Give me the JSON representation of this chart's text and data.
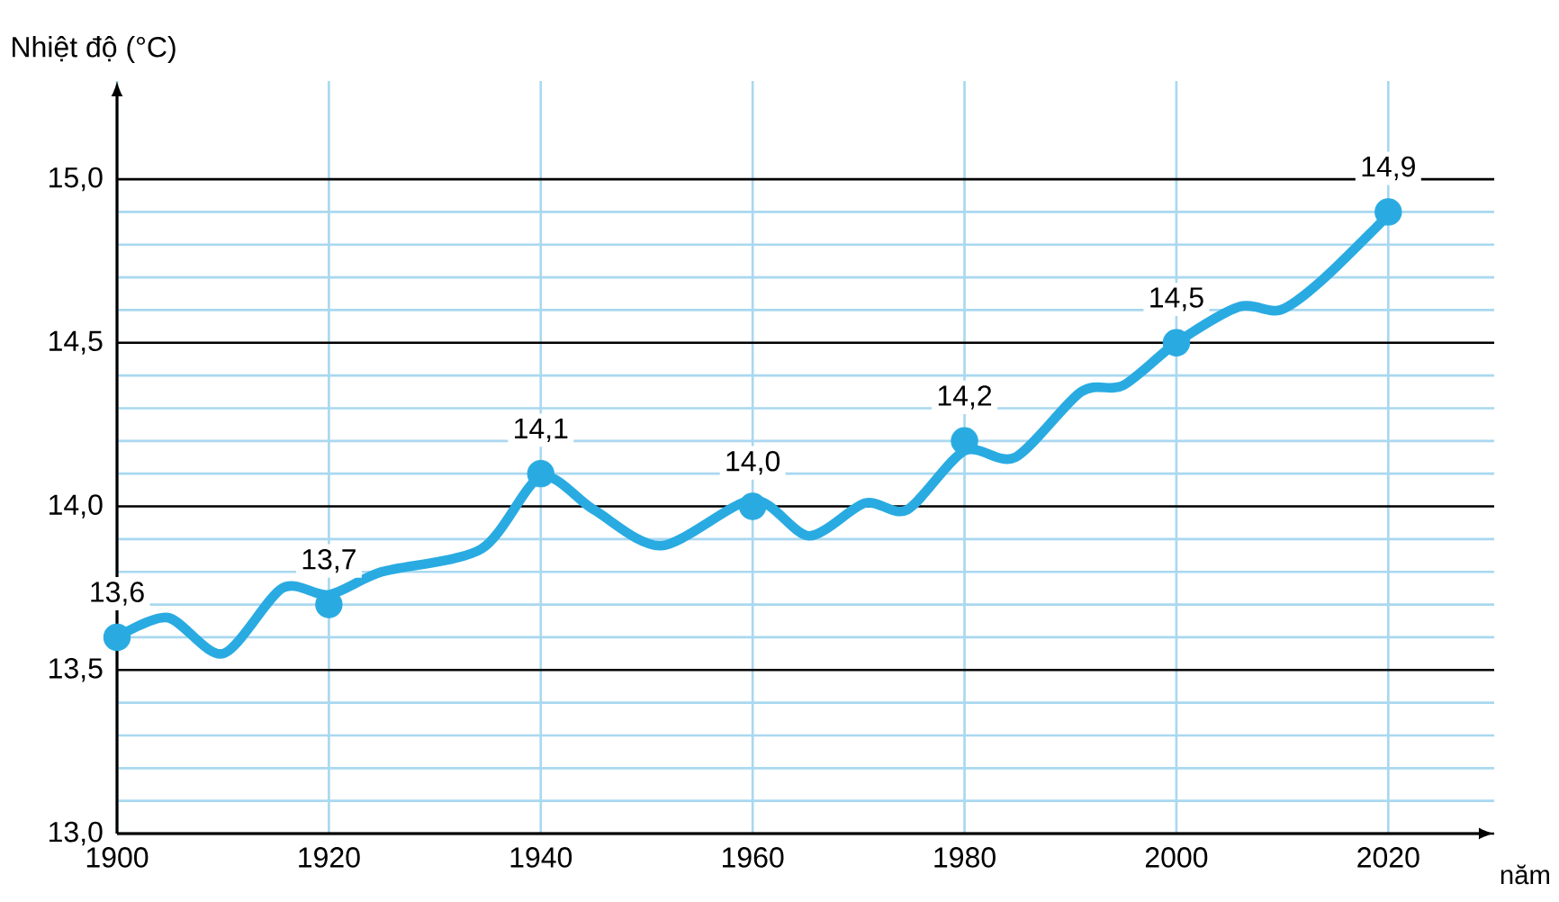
{
  "chart_data": {
    "type": "line",
    "xlabel": "năm",
    "ylabel": "Nhiệt độ (°C)",
    "xlim": [
      1900,
      2030
    ],
    "ylim": [
      13,
      15.3
    ],
    "xticks": [
      1900,
      1920,
      1940,
      1960,
      1980,
      2000,
      2020
    ],
    "yticks": [
      {
        "value": 13,
        "label": "13,0"
      },
      {
        "value": 13.5,
        "label": "13,5"
      },
      {
        "value": 14,
        "label": "14,0"
      },
      {
        "value": 14.5,
        "label": "14,5"
      },
      {
        "value": 15,
        "label": "15,0"
      }
    ],
    "grid": true,
    "line_style": "solid",
    "series": [
      {
        "color": "#29abe2",
        "x": [
          1900,
          1904.8,
          1910,
          1915.6,
          1920,
          1925,
          1934.4,
          1940,
          1945,
          1951.4,
          1960,
          1965.3,
          1970.6,
          1974.6,
          1980,
          1984.8,
          1991,
          1995,
          2000,
          2005.9,
          2009.8,
          2013.7,
          2020
        ],
        "values": [
          13.6,
          13.66,
          13.55,
          13.75,
          13.73,
          13.8,
          13.87,
          14.09,
          13.99,
          13.88,
          14.02,
          13.91,
          14.01,
          13.99,
          14.17,
          14.15,
          14.35,
          14.37,
          14.5,
          14.61,
          14.6,
          14.69,
          14.89
        ]
      },
      {
        "type": "scatter",
        "color": "#29abe2",
        "marker": "circle",
        "x": [
          1900,
          1920,
          1940,
          1960,
          1980,
          2000,
          2020
        ],
        "values": [
          13.6,
          13.7,
          14.1,
          14.0,
          14.2,
          14.5,
          14.9
        ],
        "value_labels": [
          "13,6",
          "13,7",
          "14,1",
          "14,0",
          "14,2",
          "14,5",
          "14,9"
        ]
      }
    ]
  }
}
